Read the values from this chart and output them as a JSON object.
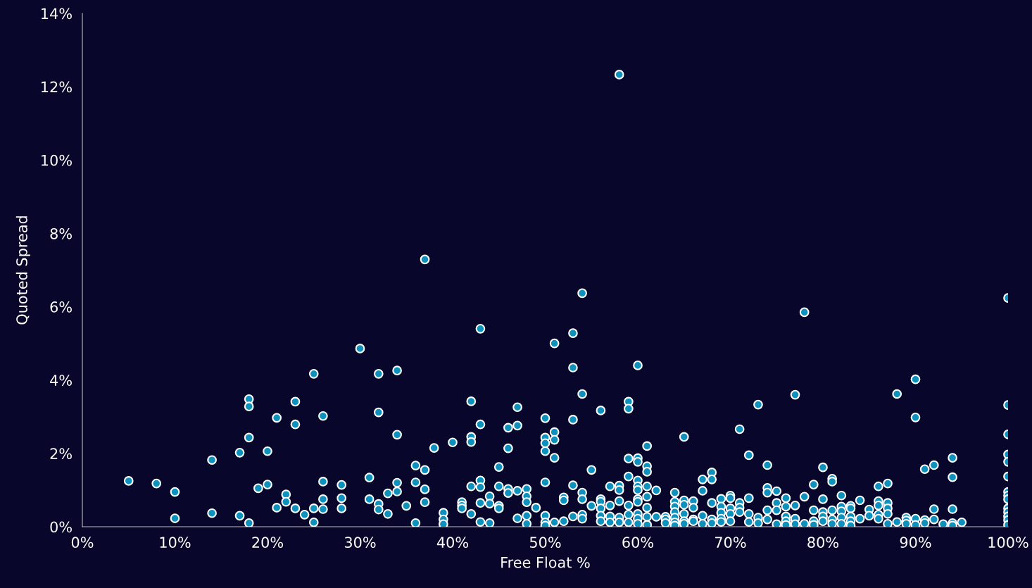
{
  "chart_data": {
    "type": "scatter",
    "xlabel": "Free Float %",
    "ylabel": "Quoted Spread",
    "marker": "circle",
    "grid": false,
    "legend": false,
    "xlim": [
      0,
      100
    ],
    "ylim": [
      0,
      14
    ],
    "xticks": [
      {
        "value": 0,
        "label": "0%"
      },
      {
        "value": 10,
        "label": "10%"
      },
      {
        "value": 20,
        "label": "20%"
      },
      {
        "value": 30,
        "label": "30%"
      },
      {
        "value": 40,
        "label": "40%"
      },
      {
        "value": 50,
        "label": "50%"
      },
      {
        "value": 60,
        "label": "60%"
      },
      {
        "value": 70,
        "label": "70%"
      },
      {
        "value": 80,
        "label": "80%"
      },
      {
        "value": 90,
        "label": "90%"
      },
      {
        "value": 100,
        "label": "100%"
      }
    ],
    "yticks": [
      {
        "value": 0,
        "label": "0%"
      },
      {
        "value": 2,
        "label": "2%"
      },
      {
        "value": 4,
        "label": "4%"
      },
      {
        "value": 6,
        "label": "6%"
      },
      {
        "value": 8,
        "label": "8%"
      },
      {
        "value": 10,
        "label": "10%"
      },
      {
        "value": 12,
        "label": "12%"
      },
      {
        "value": 14,
        "label": "14%"
      }
    ],
    "series": [
      {
        "color": "#0e91bd",
        "x": [
          5,
          8,
          10,
          10,
          14,
          14,
          17,
          17,
          18,
          18,
          18,
          18,
          19,
          20,
          20,
          21,
          21,
          22,
          22,
          23,
          23,
          23,
          24,
          25,
          25,
          25,
          26,
          26,
          26,
          26,
          28,
          28,
          28,
          30,
          31,
          31,
          32,
          32,
          32,
          32,
          33,
          33,
          34,
          34,
          34,
          34,
          35,
          36,
          36,
          36,
          37,
          37,
          37,
          37,
          38,
          39,
          39,
          39,
          40,
          41,
          41,
          41,
          42,
          42,
          42,
          42,
          42,
          43,
          43,
          43,
          43,
          43,
          43,
          44,
          44,
          44,
          45,
          45,
          45,
          45,
          46,
          46,
          46,
          46,
          47,
          47,
          47,
          47,
          48,
          48,
          48,
          48,
          48,
          49,
          50,
          50,
          50,
          50,
          50,
          50,
          50,
          50,
          51,
          51,
          51,
          51,
          51,
          52,
          52,
          52,
          53,
          53,
          53,
          53,
          53,
          54,
          54,
          54,
          54,
          54,
          54,
          55,
          55,
          56,
          56,
          56,
          56,
          56,
          56,
          57,
          57,
          57,
          57,
          58,
          58,
          58,
          58,
          58,
          58,
          59,
          59,
          59,
          59,
          59,
          59,
          59,
          60,
          60,
          60,
          60,
          60,
          60,
          60,
          60,
          60,
          60,
          60,
          61,
          61,
          61,
          61,
          61,
          61,
          61,
          61,
          62,
          62,
          63,
          63,
          63,
          64,
          64,
          64,
          64,
          64,
          64,
          64,
          65,
          65,
          65,
          65,
          65,
          65,
          66,
          66,
          66,
          66,
          67,
          67,
          67,
          67,
          68,
          68,
          68,
          68,
          68,
          69,
          69,
          69,
          69,
          69,
          70,
          70,
          70,
          70,
          70,
          71,
          71,
          71,
          71,
          72,
          72,
          72,
          72,
          73,
          73,
          73,
          74,
          74,
          74,
          74,
          74,
          75,
          75,
          75,
          75,
          76,
          76,
          76,
          76,
          76,
          77,
          77,
          77,
          77,
          78,
          78,
          78,
          79,
          79,
          79,
          79,
          80,
          80,
          80,
          80,
          80,
          81,
          81,
          81,
          81,
          81,
          82,
          82,
          82,
          82,
          82,
          83,
          83,
          83,
          83,
          83,
          84,
          84,
          85,
          85,
          86,
          86,
          86,
          86,
          86,
          87,
          87,
          87,
          87,
          87,
          88,
          88,
          89,
          89,
          89,
          90,
          90,
          90,
          90,
          91,
          91,
          91,
          92,
          92,
          92,
          93,
          94,
          94,
          94,
          94,
          94,
          95,
          100,
          100,
          100,
          100,
          100,
          100,
          100,
          100,
          100,
          100,
          100,
          100,
          100,
          100
        ],
        "values": [
          1.25,
          1.18,
          0.95,
          0.23,
          1.82,
          0.37,
          2.02,
          0.3,
          3.48,
          3.28,
          2.43,
          0.1,
          1.05,
          2.06,
          1.15,
          2.97,
          0.52,
          0.88,
          0.68,
          3.41,
          2.79,
          0.5,
          0.33,
          4.17,
          0.5,
          0.12,
          3.02,
          1.23,
          0.75,
          0.48,
          1.14,
          0.78,
          0.5,
          4.86,
          1.34,
          0.75,
          4.17,
          3.12,
          0.62,
          0.47,
          0.91,
          0.35,
          4.26,
          2.51,
          1.2,
          0.96,
          0.57,
          1.67,
          1.21,
          0.1,
          7.29,
          1.55,
          1.02,
          0.67,
          2.15,
          0.38,
          0.2,
          0.07,
          2.3,
          0.67,
          0.58,
          0.5,
          3.42,
          2.45,
          2.31,
          1.1,
          0.35,
          5.4,
          2.79,
          1.26,
          1.08,
          0.65,
          0.13,
          0.83,
          0.63,
          0.1,
          1.63,
          1.1,
          0.57,
          0.5,
          2.7,
          2.14,
          1.03,
          0.92,
          3.26,
          2.76,
          0.98,
          0.23,
          1.03,
          0.83,
          0.67,
          0.3,
          0.08,
          0.52,
          2.96,
          2.43,
          2.28,
          2.06,
          1.21,
          0.3,
          0.12,
          0.03,
          5.0,
          2.58,
          2.37,
          1.88,
          0.12,
          0.8,
          0.72,
          0.15,
          5.28,
          4.34,
          2.92,
          1.13,
          0.28,
          6.37,
          3.62,
          0.93,
          0.75,
          0.33,
          0.22,
          1.55,
          0.57,
          3.17,
          0.75,
          0.68,
          0.5,
          0.3,
          0.15,
          1.1,
          0.58,
          0.28,
          0.12,
          12.33,
          1.12,
          1.0,
          0.7,
          0.25,
          0.12,
          3.41,
          3.22,
          1.86,
          1.37,
          0.58,
          0.33,
          0.12,
          4.4,
          1.87,
          1.77,
          1.26,
          1.1,
          1.0,
          0.75,
          0.68,
          0.35,
          0.22,
          0.08,
          2.2,
          1.65,
          1.5,
          1.1,
          0.82,
          0.52,
          0.27,
          0.05,
          0.99,
          0.27,
          0.27,
          0.2,
          0.1,
          0.93,
          0.68,
          0.55,
          0.4,
          0.25,
          0.12,
          0.03,
          2.45,
          0.72,
          0.6,
          0.35,
          0.15,
          0.08,
          0.7,
          0.52,
          0.2,
          0.15,
          1.29,
          0.98,
          0.3,
          0.08,
          1.48,
          1.29,
          0.65,
          0.2,
          0.1,
          0.76,
          0.55,
          0.38,
          0.22,
          0.13,
          0.85,
          0.78,
          0.5,
          0.35,
          0.15,
          2.66,
          0.65,
          0.52,
          0.4,
          1.95,
          0.78,
          0.35,
          0.13,
          3.33,
          0.25,
          0.1,
          1.68,
          1.06,
          0.93,
          0.45,
          0.2,
          0.97,
          0.65,
          0.45,
          0.07,
          0.78,
          0.55,
          0.28,
          0.15,
          0.05,
          3.6,
          0.58,
          0.22,
          0.07,
          5.85,
          0.82,
          0.08,
          1.15,
          0.45,
          0.15,
          0.05,
          1.62,
          0.75,
          0.4,
          0.28,
          0.15,
          1.31,
          1.23,
          0.45,
          0.2,
          0.08,
          0.85,
          0.55,
          0.42,
          0.25,
          0.08,
          0.57,
          0.5,
          0.28,
          0.15,
          0.03,
          0.72,
          0.22,
          0.47,
          0.3,
          1.1,
          0.7,
          0.58,
          0.33,
          0.22,
          1.18,
          0.65,
          0.5,
          0.35,
          0.08,
          3.62,
          0.13,
          0.25,
          0.17,
          0.08,
          4.02,
          2.98,
          0.22,
          0.05,
          1.57,
          0.18,
          0.1,
          1.68,
          0.48,
          0.2,
          0.07,
          1.88,
          1.35,
          0.48,
          0.1,
          0.03,
          0.12,
          6.24,
          3.32,
          2.52,
          1.97,
          1.77,
          1.37,
          0.95,
          0.85,
          0.75,
          0.5,
          0.4,
          0.28,
          0.18,
          0.05
        ]
      }
    ]
  }
}
